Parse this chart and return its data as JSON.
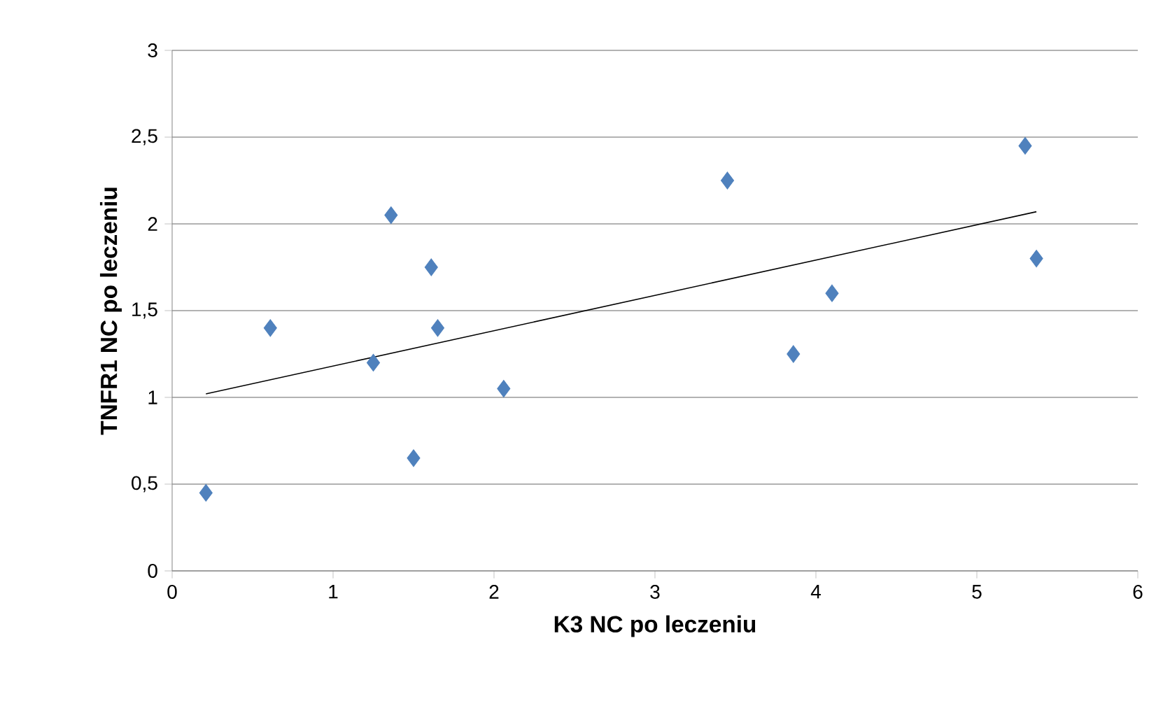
{
  "chart_data": {
    "type": "scatter",
    "xlabel": "K3 NC po leczeniu",
    "ylabel": "TNFR1 NC po leczeniu",
    "series": [
      {
        "color": "#4f81bd",
        "marker": "diamond",
        "x": [
          0.21,
          0.61,
          1.25,
          1.36,
          1.5,
          1.61,
          1.65,
          2.06,
          3.45,
          3.86,
          4.1,
          5.3,
          5.37
        ],
        "values": [
          0.45,
          1.4,
          1.2,
          2.05,
          0.65,
          1.75,
          1.4,
          1.05,
          2.25,
          1.25,
          1.6,
          2.45,
          1.8
        ]
      },
      {
        "type": "line",
        "color": "#000000",
        "marker": "none",
        "x": [
          0.21,
          5.37
        ],
        "values": [
          1.02,
          2.07
        ]
      }
    ],
    "xlim": [
      0,
      6
    ],
    "xticks": [
      0,
      1,
      2,
      3,
      4,
      5,
      6
    ],
    "ylim": [
      0,
      3
    ],
    "yticks": [
      0,
      {
        "value": 0.5,
        "label": "0,5"
      },
      1,
      {
        "value": 1.5,
        "label": "1,5"
      },
      2,
      {
        "value": 2.5,
        "label": "2,5"
      },
      3
    ],
    "grid": "y"
  }
}
